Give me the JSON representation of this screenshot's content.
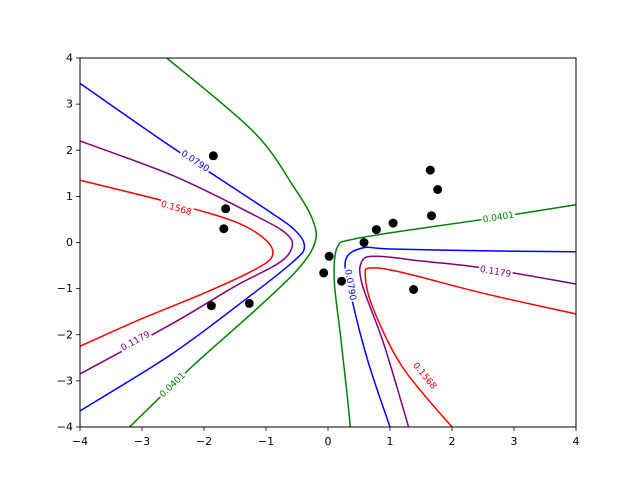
{
  "chart_data": {
    "type": "line",
    "title": "",
    "xlabel": "",
    "ylabel": "",
    "xlim": [
      -4,
      4
    ],
    "ylim": [
      -4,
      4
    ],
    "grid": false,
    "xticks": [
      "−4",
      "−3",
      "−2",
      "−1",
      "0",
      "1",
      "2",
      "3",
      "4"
    ],
    "yticks": [
      "−4",
      "−3",
      "−2",
      "−1",
      "0",
      "1",
      "2",
      "3",
      "4"
    ],
    "contour_levels": [
      {
        "label": "0.0401",
        "color": "#008000",
        "left": [
          [
            -2.6,
            4.0
          ],
          [
            -1.2,
            2.4
          ],
          [
            -0.55,
            1.2
          ],
          [
            -0.25,
            0.5
          ],
          [
            -0.21,
            0.0
          ],
          [
            -0.5,
            -0.6
          ],
          [
            -1.2,
            -1.5
          ],
          [
            -2.2,
            -2.7
          ],
          [
            -3.2,
            -4.0
          ]
        ],
        "right": [
          [
            4.0,
            0.82
          ],
          [
            2.5,
            0.5
          ],
          [
            1.2,
            0.25
          ],
          [
            0.4,
            0.07
          ],
          [
            0.15,
            -0.1
          ],
          [
            0.1,
            -0.8
          ],
          [
            0.2,
            -2.0
          ],
          [
            0.3,
            -3.2
          ],
          [
            0.36,
            -4.0
          ]
        ],
        "label_left_at": [
          -2.5,
          -3.1
        ],
        "label_right_at": [
          2.75,
          0.53
        ]
      },
      {
        "label": "0.0790",
        "color": "#0000ff",
        "left": [
          [
            -4.0,
            3.45
          ],
          [
            -2.5,
            2.05
          ],
          [
            -1.0,
            0.72
          ],
          [
            -0.52,
            0.25
          ],
          [
            -0.38,
            -0.1
          ],
          [
            -0.55,
            -0.4
          ],
          [
            -1.2,
            -1.1
          ],
          [
            -2.5,
            -2.4
          ],
          [
            -4.0,
            -3.65
          ]
        ],
        "right": [
          [
            4.0,
            -0.2
          ],
          [
            2.5,
            -0.18
          ],
          [
            1.0,
            -0.14
          ],
          [
            0.55,
            -0.12
          ],
          [
            0.28,
            -0.4
          ],
          [
            0.38,
            -1.2
          ],
          [
            0.65,
            -2.6
          ],
          [
            1.0,
            -4.0
          ]
        ],
        "label_left_at": [
          -2.15,
          1.75
        ],
        "label_right_at": [
          0.35,
          -0.92
        ]
      },
      {
        "label": "0.1179",
        "color": "#800080",
        "left": [
          [
            -4.0,
            2.2
          ],
          [
            -2.5,
            1.45
          ],
          [
            -1.2,
            0.6
          ],
          [
            -0.68,
            0.2
          ],
          [
            -0.58,
            -0.1
          ],
          [
            -0.8,
            -0.45
          ],
          [
            -1.5,
            -0.95
          ],
          [
            -2.5,
            -1.75
          ],
          [
            -4.0,
            -2.85
          ]
        ],
        "right": [
          [
            4.0,
            -0.9
          ],
          [
            2.5,
            -0.55
          ],
          [
            1.5,
            -0.4
          ],
          [
            0.8,
            -0.3
          ],
          [
            0.55,
            -0.4
          ],
          [
            0.55,
            -0.9
          ],
          [
            0.9,
            -2.2
          ],
          [
            1.3,
            -4.0
          ]
        ],
        "label_left_at": [
          -3.1,
          -2.15
        ],
        "label_right_at": [
          2.7,
          -0.65
        ]
      },
      {
        "label": "0.1568",
        "color": "#ff0000",
        "left": [
          [
            -4.0,
            1.35
          ],
          [
            -2.5,
            0.85
          ],
          [
            -1.5,
            0.45
          ],
          [
            -1.0,
            0.05
          ],
          [
            -0.9,
            -0.3
          ],
          [
            -1.2,
            -0.6
          ],
          [
            -2.0,
            -1.1
          ],
          [
            -3.0,
            -1.65
          ],
          [
            -4.0,
            -2.25
          ]
        ],
        "right": [
          [
            4.0,
            -1.55
          ],
          [
            2.5,
            -1.1
          ],
          [
            1.2,
            -0.65
          ],
          [
            0.7,
            -0.55
          ],
          [
            0.6,
            -0.7
          ],
          [
            0.72,
            -1.4
          ],
          [
            1.2,
            -2.7
          ],
          [
            2.0,
            -4.0
          ]
        ],
        "label_left_at": [
          -2.45,
          0.73
        ],
        "label_right_at": [
          1.55,
          -2.9
        ]
      }
    ],
    "points": [
      {
        "x": -1.85,
        "y": 1.88
      },
      {
        "x": -1.65,
        "y": 0.73
      },
      {
        "x": -1.68,
        "y": 0.3
      },
      {
        "x": -1.88,
        "y": -1.37
      },
      {
        "x": -1.27,
        "y": -1.32
      },
      {
        "x": 0.02,
        "y": -0.3
      },
      {
        "x": -0.07,
        "y": -0.66
      },
      {
        "x": 0.22,
        "y": -0.84
      },
      {
        "x": 0.58,
        "y": 0.0
      },
      {
        "x": 0.78,
        "y": 0.28
      },
      {
        "x": 1.05,
        "y": 0.42
      },
      {
        "x": 1.65,
        "y": 1.57
      },
      {
        "x": 1.77,
        "y": 1.15
      },
      {
        "x": 1.67,
        "y": 0.58
      },
      {
        "x": 1.38,
        "y": -1.02
      }
    ],
    "point_color": "#000000"
  }
}
